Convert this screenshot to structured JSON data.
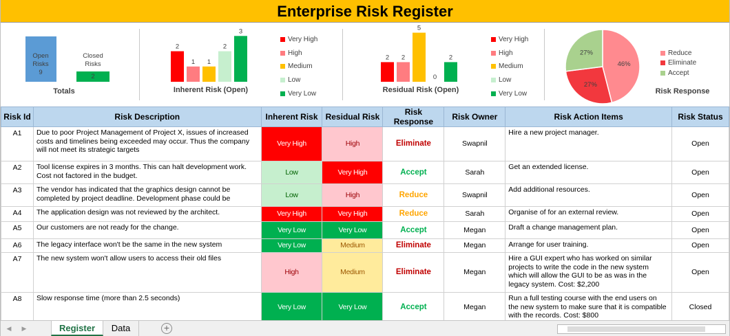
{
  "title": "Enterprise Risk Register",
  "colors": {
    "very_high": "#ff0000",
    "high": "#ff7c80",
    "medium": "#ffc000",
    "low": "#c6efce",
    "very_low": "#00b050",
    "cell_very_high": "#ff0000",
    "cell_high": "#ffc7ce",
    "cell_medium": "#ffeb9c",
    "cell_low": "#c6efce",
    "cell_very_low": "#00b050",
    "eliminate": "#c00000",
    "accept": "#00b050",
    "reduce": "#ffa500",
    "open_risks": "#5b9bd5",
    "closed_risks": "#00b050",
    "header_bg": "#ffc000"
  },
  "totals": {
    "label": "Totals",
    "open_label_1": "Open",
    "open_label_2": "Risks",
    "open_value": "9",
    "closed_label_1": "Closed",
    "closed_label_2": "Risks",
    "closed_value": "2"
  },
  "legend_levels": [
    "Very High",
    "High",
    "Medium",
    "Low",
    "Very Low"
  ],
  "legend_response": [
    "Reduce",
    "Eliminate",
    "Accept"
  ],
  "chart_data": [
    {
      "type": "bar",
      "title": "Inherent Risk (Open)",
      "categories": [
        "Very High",
        "High",
        "Medium",
        "Low",
        "Very Low"
      ],
      "values": [
        2,
        1,
        1,
        2,
        3
      ],
      "ylim": [
        0,
        3.6
      ]
    },
    {
      "type": "bar",
      "title": "Residual Risk (Open)",
      "categories": [
        "Very High",
        "High",
        "Medium",
        "Low",
        "Very Low"
      ],
      "values": [
        2,
        2,
        5,
        0,
        2
      ],
      "ylim": [
        0,
        5.6
      ]
    },
    {
      "type": "pie",
      "title": "Risk Response",
      "categories": [
        "Reduce",
        "Eliminate",
        "Accept"
      ],
      "values": [
        46,
        27,
        27
      ],
      "labels": [
        "46%",
        "27%",
        "27%"
      ]
    }
  ],
  "table": {
    "headers": [
      "Risk Id",
      "Risk Description",
      "Inherent Risk",
      "Residual Risk",
      "Risk Response",
      "Risk Owner",
      "Risk Action Items",
      "Risk Status"
    ],
    "rows": [
      {
        "id": "A1",
        "desc": "Due to poor Project Management of Project X, issues of increased costs and timelines being exceeded may occur. Thus the company will not meet its strategic targets",
        "inherent": "Very High",
        "residual": "High",
        "response": "Eliminate",
        "owner": "Swapnil",
        "action": "Hire a new project manager.",
        "status": "Open"
      },
      {
        "id": "A2",
        "desc": "Tool license expires in 3 months. This can halt development work. Cost not factored in the budget.",
        "inherent": "Low",
        "residual": "Very High",
        "response": "Accept",
        "owner": "Sarah",
        "action": "Get an extended license.",
        "status": "Open"
      },
      {
        "id": "A3",
        "desc": "The vendor has indicated that the graphics design cannot be completed by project deadline. Development phase could be",
        "inherent": "Low",
        "residual": "High",
        "response": "Reduce",
        "owner": "Swapnil",
        "action": "Add additional resources.",
        "status": "Open"
      },
      {
        "id": "A4",
        "desc": "The application design was not reviewed by the architect.",
        "inherent": "Very High",
        "residual": "Very High",
        "response": "Reduce",
        "owner": "Sarah",
        "action": "Organise of for an external review.",
        "status": "Open"
      },
      {
        "id": "A5",
        "desc": "Our customers are not ready for the change.",
        "inherent": "Very Low",
        "residual": "Very Low",
        "response": "Accept",
        "owner": "Megan",
        "action": "Draft a change management plan.",
        "status": "Open"
      },
      {
        "id": "A6",
        "desc": "The legacy interface won't be the same in the new system",
        "inherent": "Very Low",
        "residual": "Medium",
        "response": "Eliminate",
        "owner": "Megan",
        "action": "Arrange for user training.",
        "status": "Open"
      },
      {
        "id": "A7",
        "desc": "The new system won't allow users to access their old files",
        "inherent": "High",
        "residual": "Medium",
        "response": "Eliminate",
        "owner": "Megan",
        "action": "Hire a GUI expert who has worked on similar projects to write the code in the new system which will allow the GUI to be as was in the legacy system. Cost: $2,200",
        "status": "Open"
      },
      {
        "id": "A8",
        "desc": "Slow response time (more than 2.5 seconds)",
        "inherent": "Very Low",
        "residual": "Very Low",
        "response": "Accept",
        "owner": "Megan",
        "action": "Run a full testing course with the end users on the new system to make sure that it is compatible with the records. Cost: $800",
        "status": "Closed"
      }
    ]
  },
  "sheet_tabs": [
    "Register",
    "Data"
  ],
  "active_tab": "Register",
  "add_sheet_glyph": "+",
  "nav_prev_glyph": "◀",
  "nav_next_glyph": "▶"
}
